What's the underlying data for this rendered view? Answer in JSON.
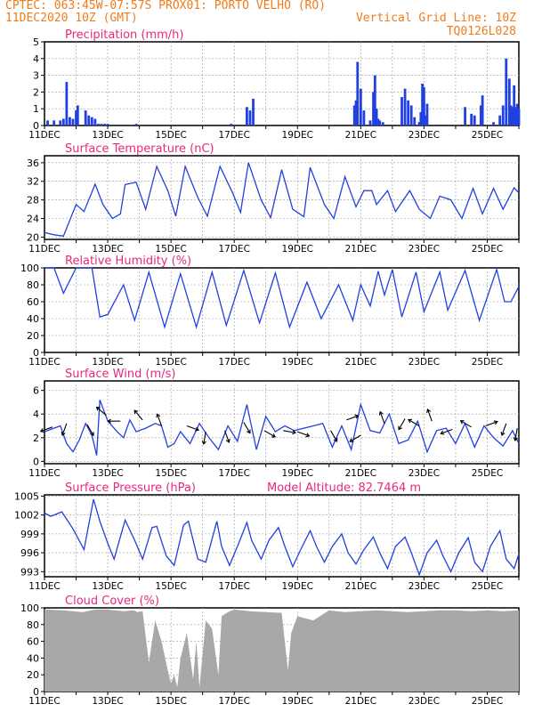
{
  "header": {
    "left1": "CPTEC:  063:45W-07:57S  PROX01: PORTO VELHO (RO)",
    "left2": "11DEC2020 10Z (GMT)",
    "right1": "Vertical Grid Line: 10Z",
    "right2": "TQ0126L028"
  },
  "colors": {
    "header": "#f07c1c",
    "title": "#e8287c",
    "series": "#2040e0",
    "cloud": "#a8a8a8",
    "grid": "#999999"
  },
  "x_axis": {
    "start_day": 11,
    "end_day": 26,
    "tick_labels": [
      "11DEC",
      "13DEC",
      "15DEC",
      "17DEC",
      "19DEC",
      "21DEC",
      "23DEC",
      "25DEC"
    ],
    "tick_days": [
      11,
      13,
      15,
      17,
      19,
      21,
      23,
      25
    ]
  },
  "chart_data": [
    {
      "id": "precip",
      "type": "bar",
      "title": "Precipitation (mm/h)",
      "ylim": [
        0,
        5
      ],
      "yticks": [
        0,
        1,
        2,
        3,
        4,
        5
      ],
      "series": [
        {
          "x": [
            11.1,
            11.3,
            11.5,
            11.6,
            11.7,
            11.8,
            11.9,
            12.0,
            12.05,
            12.3,
            12.4,
            12.5,
            12.6,
            12.7,
            12.8,
            12.9,
            13.0,
            13.9,
            16.9,
            17.4,
            17.5,
            17.6,
            20.8,
            20.85,
            20.9,
            21.0,
            21.1,
            21.3,
            21.4,
            21.45,
            21.5,
            21.55,
            21.6,
            21.7,
            22.3,
            22.4,
            22.5,
            22.6,
            22.7,
            22.85,
            22.9,
            22.95,
            23.0,
            23.05,
            23.1,
            24.3,
            24.5,
            24.6,
            24.8,
            24.85,
            25.2,
            25.4,
            25.5,
            25.6,
            25.7,
            25.75,
            25.8,
            25.85,
            25.9,
            25.95,
            26.0
          ],
          "values": [
            0.3,
            0.3,
            0.3,
            0.4,
            2.6,
            0.5,
            0.4,
            0.9,
            1.2,
            0.9,
            0.6,
            0.5,
            0.4,
            0.1,
            0.1,
            0.1,
            0.1,
            0.1,
            0.1,
            1.1,
            0.9,
            1.6,
            1.2,
            1.5,
            3.8,
            2.2,
            0.9,
            0.3,
            2.0,
            3.0,
            1.0,
            0.4,
            0.3,
            0.2,
            1.7,
            2.2,
            1.5,
            1.2,
            0.5,
            0.2,
            0.8,
            2.5,
            2.3,
            0.6,
            1.3,
            1.1,
            0.7,
            0.6,
            1.2,
            1.8,
            0.2,
            0.6,
            1.2,
            4.0,
            2.8,
            1.2,
            1.1,
            2.4,
            1.1,
            1.3,
            1.0
          ]
        }
      ]
    },
    {
      "id": "temp",
      "type": "line",
      "title": "Surface Temperature (nC)",
      "ylim": [
        19.5,
        37.5
      ],
      "yticks": [
        20,
        24,
        28,
        32,
        36
      ],
      "series": [
        {
          "x": [
            11.0,
            11.3,
            11.6,
            12.0,
            12.25,
            12.6,
            12.85,
            13.15,
            13.4,
            13.55,
            13.9,
            14.2,
            14.55,
            14.9,
            15.15,
            15.45,
            15.85,
            16.15,
            16.55,
            16.95,
            17.2,
            17.45,
            17.85,
            18.15,
            18.5,
            18.85,
            19.2,
            19.4,
            19.85,
            20.15,
            20.5,
            20.85,
            21.1,
            21.35,
            21.5,
            21.85,
            22.1,
            22.55,
            22.85,
            23.2,
            23.5,
            23.85,
            24.2,
            24.55,
            24.85,
            25.2,
            25.5,
            25.85,
            26.0
          ],
          "values": [
            21.0,
            20.5,
            20.2,
            27.0,
            25.5,
            31.4,
            27.0,
            24.0,
            25.0,
            31.3,
            31.8,
            26.0,
            35.2,
            30.0,
            24.5,
            35.2,
            28.5,
            24.5,
            35.2,
            29.5,
            25.3,
            36.0,
            28.0,
            24.2,
            34.5,
            26.0,
            24.4,
            35.0,
            27.0,
            24.0,
            33.0,
            26.5,
            30.0,
            30.0,
            27.0,
            30.0,
            25.5,
            30.0,
            26.0,
            24.0,
            28.8,
            28.0,
            24.0,
            30.5,
            25.0,
            30.5,
            26.0,
            30.6,
            29.5
          ]
        }
      ]
    },
    {
      "id": "rh",
      "type": "line",
      "title": "Relative Humidity (%)",
      "ylim": [
        0,
        100
      ],
      "yticks": [
        0,
        20,
        40,
        60,
        80,
        100
      ],
      "series": [
        {
          "x": [
            11.0,
            11.3,
            11.6,
            12.0,
            12.5,
            12.75,
            13.0,
            13.5,
            13.85,
            14.3,
            14.8,
            15.3,
            15.8,
            16.3,
            16.75,
            17.3,
            17.8,
            18.3,
            18.75,
            19.3,
            19.75,
            20.3,
            20.75,
            21.0,
            21.3,
            21.55,
            21.75,
            22.0,
            22.3,
            22.75,
            23.0,
            23.5,
            23.75,
            24.3,
            24.75,
            25.3,
            25.55,
            25.75,
            26.0
          ],
          "values": [
            100,
            100,
            70,
            100,
            100,
            42,
            45,
            80,
            38,
            95,
            30,
            93,
            30,
            95,
            32,
            97,
            35,
            94,
            30,
            83,
            40,
            80,
            38,
            80,
            55,
            96,
            68,
            98,
            42,
            95,
            48,
            95,
            50,
            97,
            38,
            98,
            60,
            60,
            78
          ]
        }
      ]
    },
    {
      "id": "wind",
      "type": "line",
      "title": "Surface Wind (m/s)",
      "ylim": [
        -0.2,
        6.8
      ],
      "yticks": [
        0,
        2,
        4,
        6
      ],
      "series": [
        {
          "x": [
            11.0,
            11.5,
            11.7,
            11.9,
            12.1,
            12.3,
            12.5,
            12.65,
            12.75,
            13.0,
            13.3,
            13.5,
            13.7,
            13.9,
            14.2,
            14.5,
            14.7,
            14.9,
            15.1,
            15.3,
            15.6,
            15.9,
            16.2,
            16.5,
            16.8,
            17.1,
            17.4,
            17.7,
            18.0,
            18.3,
            18.6,
            18.9,
            19.2,
            19.5,
            19.8,
            20.1,
            20.4,
            20.7,
            21.0,
            21.3,
            21.6,
            21.9,
            22.2,
            22.5,
            22.8,
            23.1,
            23.4,
            23.7,
            24.0,
            24.3,
            24.6,
            24.9,
            25.2,
            25.5,
            25.8,
            26.0
          ],
          "values": [
            2.5,
            3.0,
            1.5,
            0.8,
            1.8,
            3.2,
            2.2,
            0.5,
            5.2,
            3.4,
            2.5,
            2.0,
            3.5,
            2.5,
            2.8,
            3.2,
            3.0,
            1.2,
            1.5,
            2.5,
            1.5,
            3.2,
            2.0,
            1.0,
            3.0,
            1.7,
            4.8,
            1.0,
            3.8,
            2.5,
            3.0,
            2.6,
            2.8,
            3.0,
            3.2,
            1.2,
            3.0,
            1.0,
            4.8,
            2.6,
            2.4,
            4.0,
            1.5,
            1.8,
            3.4,
            0.8,
            2.6,
            2.8,
            1.5,
            3.2,
            1.2,
            3.0,
            2.0,
            1.3,
            2.6,
            1.5
          ]
        }
      ],
      "arrows": [
        {
          "x": 11.25,
          "y": 2.9,
          "angle": 200
        },
        {
          "x": 11.7,
          "y": 3.2,
          "angle": 250
        },
        {
          "x": 12.35,
          "y": 3.1,
          "angle": 300
        },
        {
          "x": 12.95,
          "y": 3.9,
          "angle": 140
        },
        {
          "x": 13.4,
          "y": 3.4,
          "angle": 180
        },
        {
          "x": 14.1,
          "y": 3.5,
          "angle": 130
        },
        {
          "x": 14.7,
          "y": 3.0,
          "angle": 110
        },
        {
          "x": 15.5,
          "y": 3.0,
          "angle": 340
        },
        {
          "x": 16.1,
          "y": 2.5,
          "angle": 260
        },
        {
          "x": 16.7,
          "y": 2.6,
          "angle": 290
        },
        {
          "x": 17.3,
          "y": 3.3,
          "angle": 300
        },
        {
          "x": 17.95,
          "y": 2.6,
          "angle": 330
        },
        {
          "x": 18.55,
          "y": 2.6,
          "angle": 350
        },
        {
          "x": 19.0,
          "y": 2.5,
          "angle": 340
        },
        {
          "x": 20.05,
          "y": 2.6,
          "angle": 300
        },
        {
          "x": 20.55,
          "y": 3.5,
          "angle": 20
        },
        {
          "x": 21.0,
          "y": 2.2,
          "angle": 210
        },
        {
          "x": 21.75,
          "y": 3.2,
          "angle": 110
        },
        {
          "x": 22.4,
          "y": 3.6,
          "angle": 240
        },
        {
          "x": 22.85,
          "y": 3.0,
          "angle": 150
        },
        {
          "x": 23.25,
          "y": 3.4,
          "angle": 110
        },
        {
          "x": 23.9,
          "y": 2.7,
          "angle": 200
        },
        {
          "x": 24.5,
          "y": 2.9,
          "angle": 150
        },
        {
          "x": 24.95,
          "y": 3.0,
          "angle": 20
        },
        {
          "x": 25.6,
          "y": 3.2,
          "angle": 250
        },
        {
          "x": 25.95,
          "y": 2.8,
          "angle": 260
        }
      ]
    },
    {
      "id": "press",
      "type": "line",
      "title": "Surface Pressure (hPa)",
      "subtitle": "Model Altitude: 82.7464 m",
      "ylim": [
        992.2,
        1005.2
      ],
      "yticks": [
        993,
        996,
        999,
        1002,
        1005
      ],
      "series": [
        {
          "x": [
            11.0,
            11.2,
            11.55,
            11.9,
            12.25,
            12.55,
            12.75,
            13.0,
            13.2,
            13.55,
            13.85,
            14.1,
            14.4,
            14.55,
            14.85,
            15.1,
            15.4,
            15.55,
            15.85,
            16.1,
            16.45,
            16.6,
            16.85,
            17.1,
            17.4,
            17.55,
            17.85,
            18.1,
            18.4,
            18.6,
            18.85,
            19.1,
            19.4,
            19.6,
            19.85,
            20.1,
            20.4,
            20.6,
            20.85,
            21.1,
            21.4,
            21.6,
            21.85,
            22.1,
            22.4,
            22.6,
            22.85,
            23.1,
            23.4,
            23.6,
            23.85,
            24.1,
            24.4,
            24.6,
            24.85,
            25.1,
            25.4,
            25.6,
            25.85,
            26.0
          ],
          "values": [
            1002.3,
            1001.8,
            1002.5,
            999.8,
            996.5,
            1004.5,
            1001.0,
            997.5,
            995.0,
            1001.2,
            998.0,
            995.0,
            1000.0,
            1000.2,
            995.5,
            994.0,
            1000.4,
            1001.0,
            995.0,
            994.5,
            1001.0,
            997.0,
            994.0,
            997.0,
            1000.8,
            998.0,
            995.0,
            998.0,
            1000.0,
            997.0,
            993.8,
            996.5,
            999.5,
            997.0,
            994.5,
            997.0,
            999.0,
            996.0,
            994.2,
            996.5,
            998.5,
            996.0,
            993.5,
            997.0,
            998.5,
            996.0,
            992.5,
            996.0,
            998.0,
            995.5,
            993.0,
            996.0,
            998.4,
            994.5,
            993.0,
            997.0,
            999.5,
            995.0,
            993.5,
            995.8
          ]
        }
      ]
    },
    {
      "id": "cloud",
      "type": "area",
      "title": "Cloud Cover (%)",
      "ylim": [
        0,
        100
      ],
      "yticks": [
        0,
        20,
        40,
        60,
        80,
        100
      ],
      "series": [
        {
          "x": [
            11.0,
            11.6,
            12.2,
            12.6,
            13.0,
            13.5,
            13.8,
            13.95,
            14.1,
            14.3,
            14.5,
            14.7,
            14.9,
            15.0,
            15.1,
            15.2,
            15.3,
            15.5,
            15.7,
            15.8,
            15.9,
            16.1,
            16.3,
            16.5,
            16.6,
            16.8,
            17.0,
            17.5,
            18.0,
            18.5,
            18.7,
            18.8,
            19.0,
            19.5,
            20.0,
            20.5,
            21.0,
            21.5,
            22.0,
            22.5,
            23.0,
            23.5,
            24.0,
            24.5,
            25.0,
            25.5,
            26.0
          ],
          "values": [
            98,
            97,
            95,
            98,
            98,
            96,
            97,
            95,
            96,
            35,
            85,
            60,
            25,
            10,
            20,
            5,
            40,
            70,
            15,
            60,
            5,
            85,
            75,
            20,
            90,
            95,
            98,
            96,
            95,
            94,
            25,
            70,
            90,
            85,
            97,
            95,
            96,
            97,
            96,
            95,
            96,
            97,
            97,
            96,
            97,
            96,
            97
          ]
        }
      ]
    }
  ]
}
